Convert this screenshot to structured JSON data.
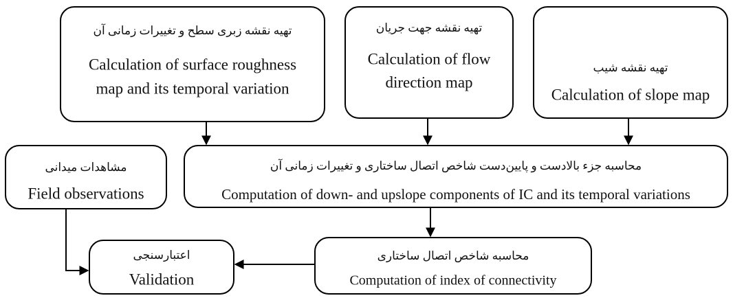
{
  "nodes": [
    {
      "label_fa": "تهیه نقشه زبری سطح و تغییرات زمانی آن",
      "label_en": [
        "Calculation of surface roughness",
        "map and its temporal variation"
      ]
    },
    {
      "label_fa": "تهیه نقشه جهت جریان",
      "label_en": [
        "Calculation of flow",
        "direction map"
      ]
    },
    {
      "label_fa": "تهیه نقشه شیب",
      "label_en": [
        "Calculation of slope map"
      ]
    },
    {
      "label_fa": "محاسبه جزء بالادست و پایین‌دست شاخص اتصال ساختاری و تغییرات زمانی آن",
      "label_en": [
        "Computation of down- and upslope components of IC and its temporal variations"
      ]
    },
    {
      "label_fa": "مشاهدات میدانی",
      "label_en": [
        "Field observations"
      ]
    },
    {
      "label_fa": "محاسبه شاخص اتصال ساختاری",
      "label_en": [
        "Computation of index of connectivity"
      ]
    },
    {
      "label_fa": "اعتبارسنجی",
      "label_en": [
        "Validation"
      ]
    }
  ]
}
